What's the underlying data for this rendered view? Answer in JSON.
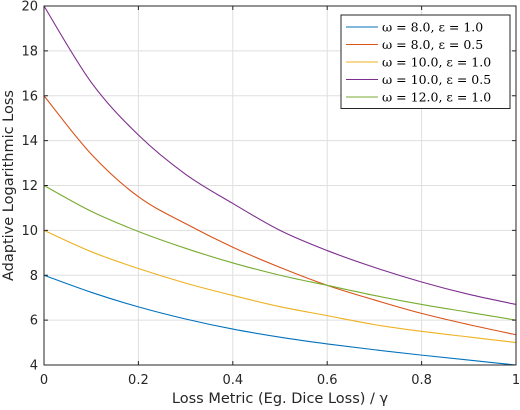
{
  "chart_data": {
    "type": "line",
    "title": "",
    "xlabel": "Loss Metric (Eg. Dice Loss) / γ",
    "ylabel": "Adaptive Logarithmic Loss",
    "xlim": [
      0,
      1
    ],
    "ylim": [
      4,
      20
    ],
    "x_ticks": [
      0,
      0.2,
      0.4,
      0.6,
      0.8,
      1
    ],
    "x_tick_labels": [
      "0",
      "0.2",
      "0.4",
      "0.6",
      "0.8",
      "1"
    ],
    "y_ticks": [
      4,
      6,
      8,
      10,
      12,
      14,
      16,
      18,
      20
    ],
    "y_tick_labels": [
      "4",
      "6",
      "8",
      "10",
      "12",
      "14",
      "16",
      "18",
      "20"
    ],
    "grid": true,
    "legend_position": "top-right",
    "x": [
      0,
      0.1,
      0.2,
      0.3,
      0.4,
      0.5,
      0.6,
      0.7,
      0.8,
      0.9,
      1.0
    ],
    "series": [
      {
        "name": "ω = 8.0, ε = 1.0",
        "color": "#0072BD",
        "values": [
          8.0,
          7.24,
          6.59,
          6.05,
          5.6,
          5.24,
          4.94,
          4.68,
          4.44,
          4.22,
          4.0
        ]
      },
      {
        "name": "ω = 8.0, ε = 0.5",
        "color": "#D95319",
        "values": [
          16.0,
          13.4,
          11.5,
          10.3,
          9.25,
          8.35,
          7.55,
          6.9,
          6.3,
          5.8,
          5.35
        ]
      },
      {
        "name": "ω = 10.0, ε = 1.0",
        "color": "#EDB120",
        "values": [
          10.0,
          9.05,
          8.3,
          7.65,
          7.1,
          6.6,
          6.2,
          5.8,
          5.5,
          5.25,
          5.0
        ]
      },
      {
        "name": "ω = 10.0, ε = 0.5",
        "color": "#7E2F8E",
        "values": [
          20.0,
          16.6,
          14.25,
          12.5,
          11.2,
          10.0,
          9.1,
          8.35,
          7.7,
          7.15,
          6.7
        ]
      },
      {
        "name": "ω = 12.0, ε = 1.0",
        "color": "#77AC30",
        "values": [
          12.0,
          10.85,
          9.95,
          9.2,
          8.55,
          8.0,
          7.55,
          7.1,
          6.7,
          6.35,
          6.0
        ]
      }
    ]
  }
}
